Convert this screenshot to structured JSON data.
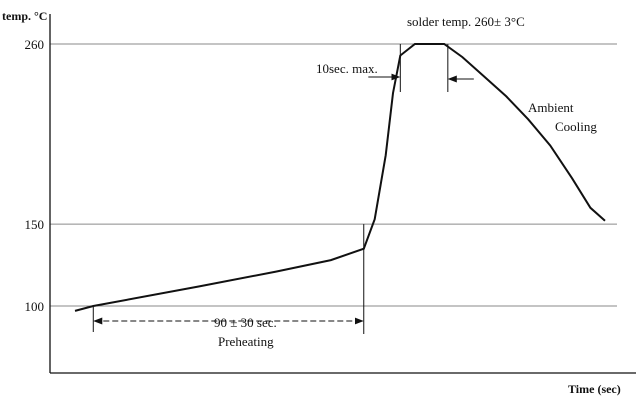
{
  "chart_data": {
    "type": "line",
    "title": "",
    "ylabel": "temp. °C",
    "xlabel": "Time (sec)",
    "yticks": [
      100,
      150,
      260
    ],
    "grid": "horizontal lines at y ticks",
    "ylim": [
      58,
      272
    ],
    "series": [
      {
        "points": [
          [
            0,
            97
          ],
          [
            5,
            100
          ],
          [
            34,
            112
          ],
          [
            55,
            121
          ],
          [
            70,
            128
          ],
          [
            79,
            135
          ],
          [
            82,
            153
          ],
          [
            85,
            192
          ],
          [
            87,
            230
          ],
          [
            89,
            253
          ],
          [
            93,
            260
          ],
          [
            101,
            260
          ],
          [
            106,
            252
          ],
          [
            112,
            240
          ],
          [
            118,
            228
          ],
          [
            124,
            214
          ],
          [
            130,
            198
          ],
          [
            136,
            178
          ],
          [
            141,
            160
          ],
          [
            145,
            152
          ]
        ]
      }
    ],
    "annotations": {
      "solder": "solder temp.  260± 3°C",
      "ten_sec": "10sec. max.",
      "ambient_1": "Ambient",
      "ambient_2": "Cooling",
      "preheat_value": "90 ± 30 sec.",
      "preheat_label": "Preheating"
    },
    "arrow_spans": {
      "preheat": [
        5,
        79
      ],
      "ten_sec": [
        89,
        102
      ]
    }
  }
}
